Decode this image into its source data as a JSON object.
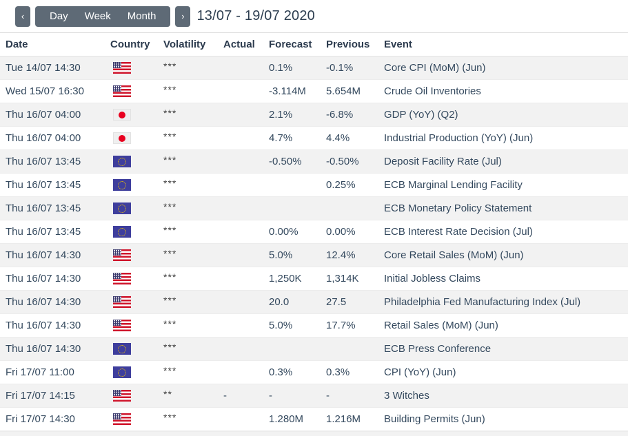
{
  "toolbar": {
    "prev_label": "‹",
    "views": [
      "Day",
      "Week",
      "Month"
    ],
    "next_label": "›",
    "title": "13/07 - 19/07 2020"
  },
  "table": {
    "columns": [
      "Date",
      "Country",
      "Volatility",
      "Actual",
      "Forecast",
      "Previous",
      "Event"
    ],
    "rows": [
      {
        "date": "Tue 14/07 14:30",
        "country": "us",
        "volatility": "***",
        "actual": "",
        "forecast": "0.1%",
        "previous": "-0.1%",
        "event": "Core CPI (MoM) (Jun)"
      },
      {
        "date": "Wed 15/07 16:30",
        "country": "us",
        "volatility": "***",
        "actual": "",
        "forecast": "-3.114M",
        "previous": "5.654M",
        "event": "Crude Oil Inventories"
      },
      {
        "date": "Thu 16/07 04:00",
        "country": "jp",
        "volatility": "***",
        "actual": "",
        "forecast": "2.1%",
        "previous": "-6.8%",
        "event": "GDP (YoY) (Q2)"
      },
      {
        "date": "Thu 16/07 04:00",
        "country": "jp",
        "volatility": "***",
        "actual": "",
        "forecast": "4.7%",
        "previous": "4.4%",
        "event": "Industrial Production (YoY) (Jun)"
      },
      {
        "date": "Thu 16/07 13:45",
        "country": "eu",
        "volatility": "***",
        "actual": "",
        "forecast": "-0.50%",
        "previous": "-0.50%",
        "event": "Deposit Facility Rate (Jul)"
      },
      {
        "date": "Thu 16/07 13:45",
        "country": "eu",
        "volatility": "***",
        "actual": "",
        "forecast": "",
        "previous": "0.25%",
        "event": "ECB Marginal Lending Facility"
      },
      {
        "date": "Thu 16/07 13:45",
        "country": "eu",
        "volatility": "***",
        "actual": "",
        "forecast": "",
        "previous": "",
        "event": "ECB Monetary Policy Statement"
      },
      {
        "date": "Thu 16/07 13:45",
        "country": "eu",
        "volatility": "***",
        "actual": "",
        "forecast": "0.00%",
        "previous": "0.00%",
        "event": "ECB Interest Rate Decision (Jul)"
      },
      {
        "date": "Thu 16/07 14:30",
        "country": "us",
        "volatility": "***",
        "actual": "",
        "forecast": "5.0%",
        "previous": "12.4%",
        "event": "Core Retail Sales (MoM) (Jun)"
      },
      {
        "date": "Thu 16/07 14:30",
        "country": "us",
        "volatility": "***",
        "actual": "",
        "forecast": "1,250K",
        "previous": "1,314K",
        "event": "Initial Jobless Claims"
      },
      {
        "date": "Thu 16/07 14:30",
        "country": "us",
        "volatility": "***",
        "actual": "",
        "forecast": "20.0",
        "previous": "27.5",
        "event": "Philadelphia Fed Manufacturing Index (Jul)"
      },
      {
        "date": "Thu 16/07 14:30",
        "country": "us",
        "volatility": "***",
        "actual": "",
        "forecast": "5.0%",
        "previous": "17.7%",
        "event": "Retail Sales (MoM) (Jun)"
      },
      {
        "date": "Thu 16/07 14:30",
        "country": "eu",
        "volatility": "***",
        "actual": "",
        "forecast": "",
        "previous": "",
        "event": "ECB Press Conference"
      },
      {
        "date": "Fri 17/07 11:00",
        "country": "eu",
        "volatility": "***",
        "actual": "",
        "forecast": "0.3%",
        "previous": "0.3%",
        "event": "CPI (YoY) (Jun)"
      },
      {
        "date": "Fri 17/07 14:15",
        "country": "us",
        "volatility": "**",
        "actual": "-",
        "forecast": "-",
        "previous": "-",
        "event": "3 Witches"
      },
      {
        "date": "Fri 17/07 14:30",
        "country": "us",
        "volatility": "***",
        "actual": "",
        "forecast": "1.280M",
        "previous": "1.216M",
        "event": "Building Permits (Jun)"
      }
    ]
  },
  "colors": {
    "button_bg": "#5e6a76",
    "text": "#34495e",
    "row_alt": "#f2f2f2",
    "us_red": "#cf142b",
    "us_blue": "#3c3b6e",
    "eu_blue": "#3e3e9d",
    "eu_star": "#f3c500",
    "jp_red": "#e8001f"
  }
}
